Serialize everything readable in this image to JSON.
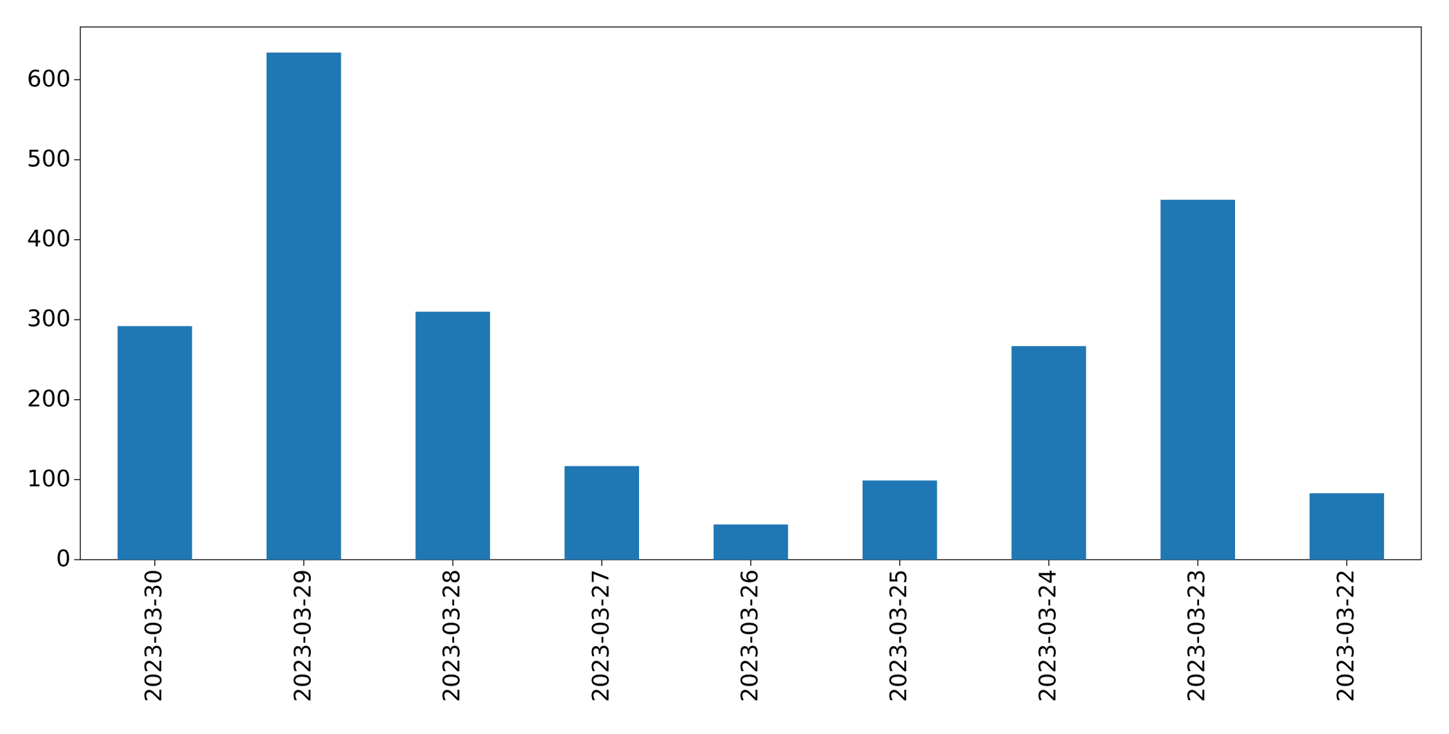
{
  "chart_data": {
    "type": "bar",
    "categories": [
      "2023-03-30",
      "2023-03-29",
      "2023-03-28",
      "2023-03-27",
      "2023-03-26",
      "2023-03-25",
      "2023-03-24",
      "2023-03-23",
      "2023-03-22"
    ],
    "values": [
      292,
      634,
      310,
      117,
      44,
      99,
      267,
      450,
      83
    ],
    "color": "#1f77b4",
    "ylim": [
      0,
      666
    ],
    "yticks": [
      0,
      100,
      200,
      300,
      400,
      500,
      600
    ],
    "grid": false
  }
}
